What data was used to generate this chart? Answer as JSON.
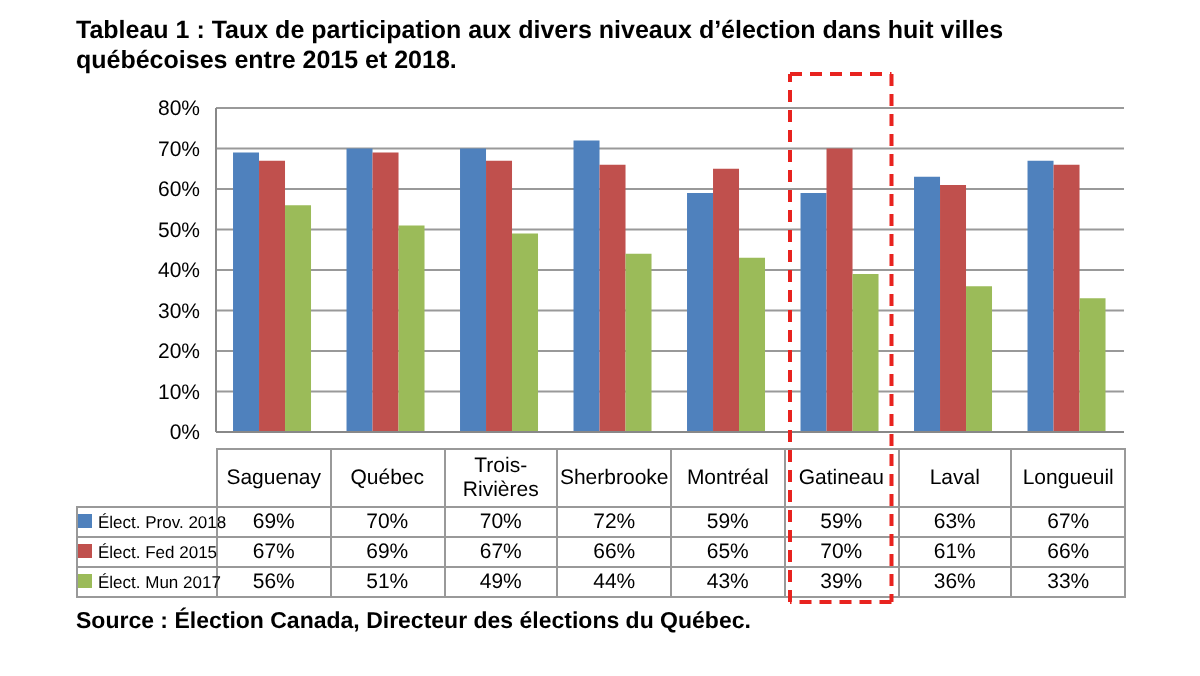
{
  "chart_data": {
    "type": "bar",
    "title": "Tableau 1 : Taux de participation aux divers niveaux d’élection dans huit villes québécoises entre 2015 et 2018.",
    "categories": [
      "Saguenay",
      "Québec",
      "Trois-Rivières",
      "Sherbrooke",
      "Montréal",
      "Gatineau",
      "Laval",
      "Longueuil"
    ],
    "series": [
      {
        "name": "Élect. Prov. 2018",
        "color": "#4f81bd",
        "values": [
          69,
          70,
          70,
          72,
          59,
          59,
          63,
          67
        ],
        "value_labels": [
          "69%",
          "70%",
          "70%",
          "72%",
          "59%",
          "59%",
          "63%",
          "67%"
        ]
      },
      {
        "name": "Élect. Fed 2015",
        "color": "#c0504d",
        "values": [
          67,
          69,
          67,
          66,
          65,
          70,
          61,
          66
        ],
        "value_labels": [
          "67%",
          "69%",
          "67%",
          "66%",
          "65%",
          "70%",
          "61%",
          "66%"
        ]
      },
      {
        "name": "Élect. Mun 2017",
        "color": "#9bbb59",
        "values": [
          56,
          51,
          49,
          44,
          43,
          39,
          36,
          33
        ],
        "value_labels": [
          "56%",
          "51%",
          "49%",
          "44%",
          "43%",
          "39%",
          "36%",
          "33%"
        ]
      }
    ],
    "ylim": [
      0,
      80
    ],
    "yticks": [
      {
        "value": 0,
        "label": "0%"
      },
      {
        "value": 10,
        "label": "10%"
      },
      {
        "value": 20,
        "label": "20%"
      },
      {
        "value": 30,
        "label": "30%"
      },
      {
        "value": 40,
        "label": "40%"
      },
      {
        "value": 50,
        "label": "50%"
      },
      {
        "value": 60,
        "label": "60%"
      },
      {
        "value": 70,
        "label": "70%"
      },
      {
        "value": 80,
        "label": "80%"
      }
    ],
    "grid": "y",
    "legend": "bottom",
    "annotations": [
      "Source : Élection Canada, Directeur des élections du Québec."
    ]
  }
}
